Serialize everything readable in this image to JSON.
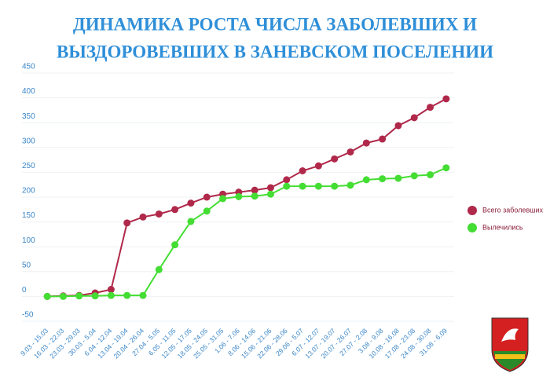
{
  "chart_data": {
    "type": "line",
    "title": [
      "ДИНАМИКА РОСТА ЧИСЛА ЗАБОЛЕВШИХ И",
      "ВЫЗДОРОВЕВШИХ В ЗАНЕВСКОМ ПОСЕЛЕНИИ"
    ],
    "categories": [
      "9.03 - 15.03",
      "16.03 - 22.03",
      "23.03 - 29.03",
      "30.03 - 5.04",
      "6.04 - 12.04",
      "13.04 - 19.04",
      "20.04 - 26.04",
      "27.04 - 5.05",
      "6.05 - 11.05",
      "12.05 - 17.05",
      "18.05 - 24.05",
      "25.05 - 31.05",
      "1.06 - 7.06",
      "8.06 - 14.06",
      "15.06 - 21.06",
      "22.06 - 28.06",
      "29.06 - 5.07",
      "6.07 - 12.07",
      "13.07 - 19.07",
      "20.07 - 26.07",
      "27.07 - 2.08",
      "3.08 - 9.08",
      "10.08 - 16.08",
      "17.08 - 23.08",
      "24.08 - 30.08",
      "31.08 - 6.09"
    ],
    "series": [
      {
        "name": "Всего заболевших",
        "color": "#b0284a",
        "values": [
          0,
          1,
          2,
          7,
          14,
          148,
          160,
          166,
          175,
          188,
          200,
          206,
          210,
          214,
          219,
          235,
          253,
          263,
          277,
          291,
          309,
          317,
          344,
          360,
          381,
          398
        ]
      },
      {
        "name": "Вылечились",
        "color": "#44dd33",
        "values": [
          0,
          0,
          1,
          1,
          2,
          2,
          2,
          54,
          104,
          151,
          172,
          197,
          201,
          202,
          206,
          222,
          222,
          222,
          222,
          224,
          235,
          237,
          238,
          243,
          245,
          259
        ]
      }
    ],
    "ylim": [
      -50,
      450
    ],
    "yticks": [
      -50,
      0,
      50,
      100,
      150,
      200,
      250,
      300,
      350,
      400,
      450
    ],
    "grid": true,
    "legend": "right"
  }
}
